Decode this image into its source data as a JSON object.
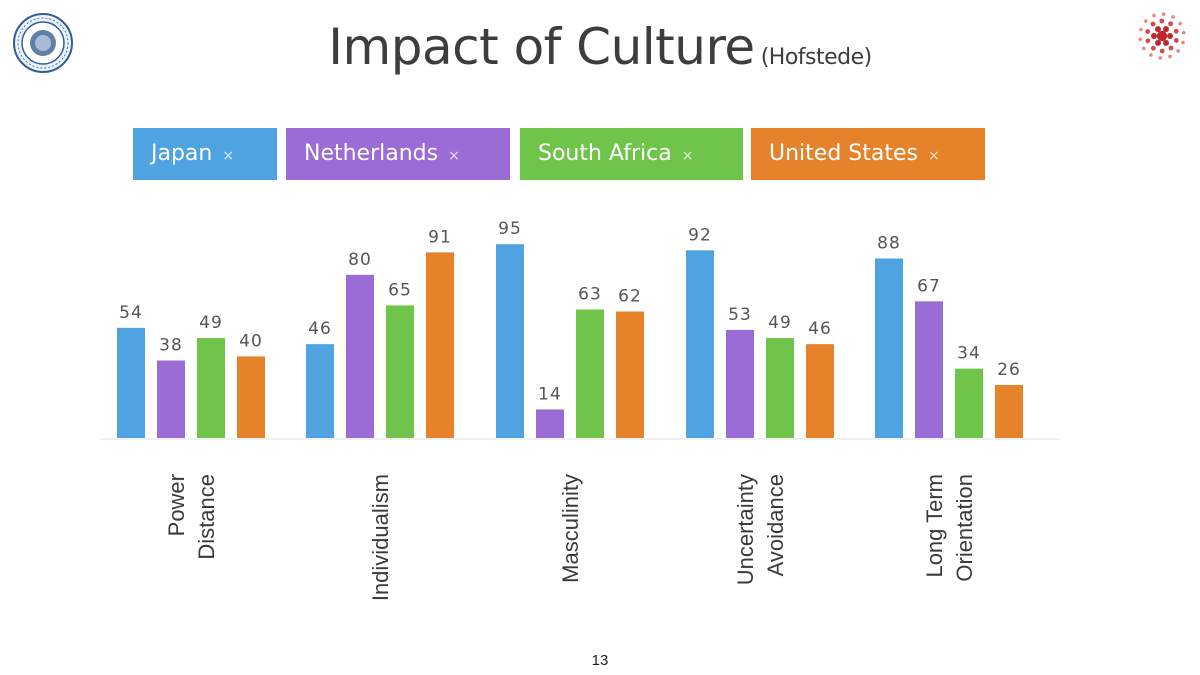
{
  "slide": {
    "title": "Impact of Culture",
    "subtitle": "(Hofstede)",
    "page_number": "13"
  },
  "legend": {
    "items": [
      {
        "label": "Japan",
        "close": "×",
        "color": "#4ea3e0"
      },
      {
        "label": "Netherlands",
        "close": "×",
        "color": "#9b6bd6"
      },
      {
        "label": "South Africa",
        "close": "×",
        "color": "#6ec54a"
      },
      {
        "label": "United States",
        "close": "×",
        "color": "#e6822a"
      }
    ]
  },
  "chart_data": {
    "type": "bar",
    "categories": [
      [
        "Power",
        "Distance"
      ],
      [
        "Individualism"
      ],
      [
        "Masculinity"
      ],
      [
        "Uncertainty",
        "Avoidance"
      ],
      [
        "Long Term",
        "Orientation"
      ]
    ],
    "series": [
      {
        "name": "Japan",
        "color": "#4ea3e0",
        "values": [
          54,
          46,
          95,
          92,
          88
        ]
      },
      {
        "name": "Netherlands",
        "color": "#9b6bd6",
        "values": [
          38,
          80,
          14,
          53,
          67
        ]
      },
      {
        "name": "South Africa",
        "color": "#6ec54a",
        "values": [
          49,
          65,
          63,
          49,
          34
        ]
      },
      {
        "name": "United States",
        "color": "#e6822a",
        "values": [
          40,
          91,
          62,
          46,
          26
        ]
      }
    ],
    "ylim": [
      0,
      100
    ],
    "data_labels": true
  }
}
